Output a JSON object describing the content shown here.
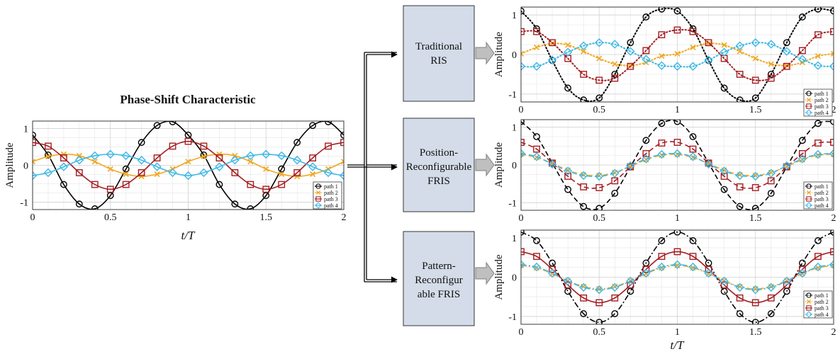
{
  "left_title": "Phase-Shift Characteristic",
  "blocks": [
    {
      "lines": [
        "Traditional",
        "RIS"
      ]
    },
    {
      "lines": [
        "Position-",
        "Reconfigurable",
        "FRIS"
      ]
    },
    {
      "lines": [
        "Pattern-",
        "Reconfigur",
        "able FRIS"
      ]
    }
  ],
  "colors": {
    "path1": "#000000",
    "path2": "#F0A820",
    "path3": "#A51E22",
    "path4": "#3DB8E6",
    "block_fill": "#D3DCE8",
    "arrow_fill": "#BFBFBF"
  },
  "chart_data": [
    {
      "id": "phase-shift",
      "type": "line",
      "title": "Phase-Shift Characteristic",
      "xlabel": "t/T",
      "ylabel": "Amplitude",
      "xlim": [
        0,
        2
      ],
      "ylim": [
        -1.2,
        1.2
      ],
      "xticks": [
        "0",
        "0.5",
        "1",
        "1.5",
        "2"
      ],
      "yticks": [
        "1",
        "0",
        "-1"
      ],
      "grid": true,
      "legend": "bottom-right",
      "series": [
        {
          "name": "path 1",
          "style": "solid",
          "marker": "circle",
          "x": [
            0,
            0.1,
            0.2,
            0.3,
            0.4,
            0.5,
            0.6,
            0.7,
            0.8,
            0.9,
            1.0,
            1.1,
            1.2,
            1.3,
            1.4,
            1.5,
            1.6,
            1.7,
            1.8,
            1.9,
            2.0
          ],
          "y": [
            0.82,
            0.28,
            -0.52,
            -1.05,
            -1.18,
            -0.82,
            -0.1,
            0.62,
            1.08,
            1.18,
            0.82,
            0.28,
            -0.52,
            -1.05,
            -1.18,
            -0.82,
            -0.1,
            0.62,
            1.08,
            1.18,
            0.82
          ]
        },
        {
          "name": "path 2",
          "style": "solid",
          "marker": "x",
          "x": [
            0,
            0.1,
            0.2,
            0.3,
            0.4,
            0.5,
            0.6,
            0.7,
            0.8,
            0.9,
            1.0,
            1.1,
            1.2,
            1.3,
            1.4,
            1.5,
            1.6,
            1.7,
            1.8,
            1.9,
            2.0
          ],
          "y": [
            0.1,
            0.24,
            0.3,
            0.26,
            0.1,
            -0.1,
            -0.24,
            -0.3,
            -0.24,
            -0.1,
            0.1,
            0.24,
            0.3,
            0.26,
            0.1,
            -0.1,
            -0.24,
            -0.3,
            -0.24,
            -0.1,
            0.1
          ]
        },
        {
          "name": "path 3",
          "style": "solid",
          "marker": "square",
          "x": [
            0,
            0.1,
            0.2,
            0.3,
            0.4,
            0.5,
            0.6,
            0.7,
            0.8,
            0.9,
            1.0,
            1.1,
            1.2,
            1.3,
            1.4,
            1.5,
            1.6,
            1.7,
            1.8,
            1.9,
            2.0
          ],
          "y": [
            0.62,
            0.52,
            0.2,
            -0.2,
            -0.52,
            -0.65,
            -0.52,
            -0.2,
            0.2,
            0.52,
            0.65,
            0.52,
            0.2,
            -0.2,
            -0.52,
            -0.65,
            -0.52,
            -0.2,
            0.2,
            0.52,
            0.62
          ]
        },
        {
          "name": "path 4",
          "style": "solid",
          "marker": "diamond",
          "x": [
            0,
            0.1,
            0.2,
            0.3,
            0.4,
            0.5,
            0.6,
            0.7,
            0.8,
            0.9,
            1.0,
            1.1,
            1.2,
            1.3,
            1.4,
            1.5,
            1.6,
            1.7,
            1.8,
            1.9,
            2.0
          ],
          "y": [
            -0.28,
            -0.2,
            -0.04,
            0.14,
            0.26,
            0.3,
            0.26,
            0.14,
            -0.04,
            -0.2,
            -0.28,
            -0.2,
            -0.04,
            0.14,
            0.26,
            0.3,
            0.26,
            0.14,
            -0.04,
            -0.2,
            -0.28
          ]
        }
      ]
    },
    {
      "id": "traditional-ris",
      "type": "line",
      "xlabel": "",
      "ylabel": "Amplitude",
      "xlim": [
        0,
        2
      ],
      "ylim": [
        -1.2,
        1.2
      ],
      "xticks": [
        "0",
        "0.5",
        "1",
        "1.5",
        "2"
      ],
      "yticks": [
        "1",
        "0",
        "-1"
      ],
      "grid": true,
      "legend": "bottom-right",
      "series": [
        {
          "name": "path 1",
          "style": "dotted",
          "marker": "circle",
          "x": [
            0,
            0.1,
            0.2,
            0.3,
            0.4,
            0.5,
            0.6,
            0.7,
            0.8,
            0.9,
            1.0,
            1.1,
            1.2,
            1.3,
            1.4,
            1.5,
            1.6,
            1.7,
            1.8,
            1.9,
            2.0
          ],
          "y": [
            1.1,
            0.65,
            -0.15,
            -0.85,
            -1.15,
            -1.1,
            -0.5,
            0.3,
            0.95,
            1.15,
            1.1,
            0.65,
            -0.15,
            -0.85,
            -1.15,
            -1.1,
            -0.5,
            0.3,
            0.95,
            1.15,
            1.1
          ]
        },
        {
          "name": "path 2",
          "style": "dotted",
          "marker": "x",
          "x": [
            0,
            0.1,
            0.2,
            0.3,
            0.4,
            0.5,
            0.6,
            0.7,
            0.8,
            0.9,
            1.0,
            1.1,
            1.2,
            1.3,
            1.4,
            1.5,
            1.6,
            1.7,
            1.8,
            1.9,
            2.0
          ],
          "y": [
            0.02,
            0.18,
            0.28,
            0.24,
            0.08,
            -0.1,
            -0.24,
            -0.28,
            -0.2,
            -0.04,
            0.02,
            0.18,
            0.28,
            0.24,
            0.08,
            -0.1,
            -0.24,
            -0.28,
            -0.2,
            -0.04,
            0.02
          ]
        },
        {
          "name": "path 3",
          "style": "dotted",
          "marker": "square",
          "x": [
            0,
            0.1,
            0.2,
            0.3,
            0.4,
            0.5,
            0.6,
            0.7,
            0.8,
            0.9,
            1.0,
            1.1,
            1.2,
            1.3,
            1.4,
            1.5,
            1.6,
            1.7,
            1.8,
            1.9,
            2.0
          ],
          "y": [
            0.58,
            0.58,
            0.3,
            -0.1,
            -0.5,
            -0.65,
            -0.6,
            -0.3,
            0.1,
            0.5,
            0.62,
            0.58,
            0.3,
            -0.1,
            -0.5,
            -0.65,
            -0.6,
            -0.3,
            0.1,
            0.5,
            0.58
          ]
        },
        {
          "name": "path 4",
          "style": "dotted",
          "marker": "diamond",
          "x": [
            0,
            0.1,
            0.2,
            0.3,
            0.4,
            0.5,
            0.6,
            0.7,
            0.8,
            0.9,
            1.0,
            1.1,
            1.2,
            1.3,
            1.4,
            1.5,
            1.6,
            1.7,
            1.8,
            1.9,
            2.0
          ],
          "y": [
            -0.3,
            -0.3,
            -0.14,
            0.06,
            0.22,
            0.3,
            0.26,
            0.08,
            -0.12,
            -0.28,
            -0.3,
            -0.3,
            -0.14,
            0.06,
            0.22,
            0.3,
            0.26,
            0.08,
            -0.12,
            -0.28,
            -0.3
          ]
        }
      ]
    },
    {
      "id": "position-fris",
      "type": "line",
      "xlabel": "",
      "ylabel": "Amplitude",
      "xlim": [
        0,
        2
      ],
      "ylim": [
        -1.2,
        1.2
      ],
      "xticks": [
        "0",
        "0.5",
        "1",
        "1.5",
        "2"
      ],
      "yticks": [
        "1",
        "0",
        "-1"
      ],
      "grid": true,
      "legend": "bottom-right",
      "series": [
        {
          "name": "path 1",
          "style": "dashed",
          "marker": "circle",
          "x": [
            0,
            0.1,
            0.2,
            0.3,
            0.4,
            0.5,
            0.6,
            0.7,
            0.8,
            0.9,
            1.0,
            1.1,
            1.2,
            1.3,
            1.4,
            1.5,
            1.6,
            1.7,
            1.8,
            1.9,
            2.0
          ],
          "y": [
            1.15,
            0.75,
            0.05,
            -0.65,
            -1.1,
            -1.15,
            -0.75,
            -0.05,
            0.65,
            1.1,
            1.15,
            0.75,
            0.05,
            -0.65,
            -1.1,
            -1.15,
            -0.75,
            -0.05,
            0.65,
            1.1,
            1.15
          ]
        },
        {
          "name": "path 2",
          "style": "dashed",
          "marker": "x",
          "x": [
            0,
            0.1,
            0.2,
            0.3,
            0.4,
            0.5,
            0.6,
            0.7,
            0.8,
            0.9,
            1.0,
            1.1,
            1.2,
            1.3,
            1.4,
            1.5,
            1.6,
            1.7,
            1.8,
            1.9,
            2.0
          ],
          "y": [
            0.28,
            0.2,
            0.04,
            -0.14,
            -0.26,
            -0.28,
            -0.2,
            -0.04,
            0.14,
            0.26,
            0.28,
            0.2,
            0.04,
            -0.14,
            -0.26,
            -0.28,
            -0.2,
            -0.04,
            0.14,
            0.26,
            0.28
          ]
        },
        {
          "name": "path 3",
          "style": "dashed",
          "marker": "square",
          "x": [
            0,
            0.1,
            0.2,
            0.3,
            0.4,
            0.5,
            0.6,
            0.7,
            0.8,
            0.9,
            1.0,
            1.1,
            1.2,
            1.3,
            1.4,
            1.5,
            1.6,
            1.7,
            1.8,
            1.9,
            2.0
          ],
          "y": [
            0.6,
            0.42,
            0.05,
            -0.3,
            -0.58,
            -0.6,
            -0.42,
            -0.05,
            0.3,
            0.58,
            0.6,
            0.42,
            0.05,
            -0.3,
            -0.58,
            -0.6,
            -0.42,
            -0.05,
            0.3,
            0.58,
            0.6
          ]
        },
        {
          "name": "path 4",
          "style": "dashed",
          "marker": "diamond",
          "x": [
            0,
            0.1,
            0.2,
            0.3,
            0.4,
            0.5,
            0.6,
            0.7,
            0.8,
            0.9,
            1.0,
            1.1,
            1.2,
            1.3,
            1.4,
            1.5,
            1.6,
            1.7,
            1.8,
            1.9,
            2.0
          ],
          "y": [
            0.3,
            0.22,
            0.02,
            -0.16,
            -0.28,
            -0.3,
            -0.22,
            -0.02,
            0.16,
            0.28,
            0.3,
            0.22,
            0.02,
            -0.16,
            -0.28,
            -0.3,
            -0.22,
            -0.02,
            0.16,
            0.28,
            0.3
          ]
        }
      ]
    },
    {
      "id": "pattern-fris",
      "type": "line",
      "xlabel": "t/T",
      "ylabel": "Amplitude",
      "xlim": [
        0,
        2
      ],
      "ylim": [
        -1.2,
        1.2
      ],
      "xticks": [
        "0",
        "0.5",
        "1",
        "1.5",
        "2"
      ],
      "yticks": [
        "1",
        "0",
        "-1"
      ],
      "grid": true,
      "legend": "bottom-right",
      "series": [
        {
          "name": "path 1",
          "style": "dashdot",
          "marker": "circle",
          "x": [
            0,
            0.1,
            0.2,
            0.3,
            0.4,
            0.5,
            0.6,
            0.7,
            0.8,
            0.9,
            1.0,
            1.1,
            1.2,
            1.3,
            1.4,
            1.5,
            1.6,
            1.7,
            1.8,
            1.9,
            2.0
          ],
          "y": [
            1.15,
            0.93,
            0.36,
            -0.36,
            -0.93,
            -1.15,
            -0.93,
            -0.36,
            0.36,
            0.93,
            1.15,
            0.93,
            0.36,
            -0.36,
            -0.93,
            -1.15,
            -0.93,
            -0.36,
            0.36,
            0.93,
            1.15
          ]
        },
        {
          "name": "path 2",
          "style": "dashdot",
          "marker": "x",
          "x": [
            0,
            0.1,
            0.2,
            0.3,
            0.4,
            0.5,
            0.6,
            0.7,
            0.8,
            0.9,
            1.0,
            1.1,
            1.2,
            1.3,
            1.4,
            1.5,
            1.6,
            1.7,
            1.8,
            1.9,
            2.0
          ],
          "y": [
            0.3,
            0.24,
            0.09,
            -0.09,
            -0.24,
            -0.3,
            -0.24,
            -0.09,
            0.09,
            0.24,
            0.3,
            0.24,
            0.09,
            -0.09,
            -0.24,
            -0.3,
            -0.24,
            -0.09,
            0.09,
            0.24,
            0.3
          ]
        },
        {
          "name": "path 3",
          "style": "solid",
          "marker": "square",
          "x": [
            0,
            0.1,
            0.2,
            0.3,
            0.4,
            0.5,
            0.6,
            0.7,
            0.8,
            0.9,
            1.0,
            1.1,
            1.2,
            1.3,
            1.4,
            1.5,
            1.6,
            1.7,
            1.8,
            1.9,
            2.0
          ],
          "y": [
            0.65,
            0.53,
            0.2,
            -0.2,
            -0.53,
            -0.65,
            -0.53,
            -0.2,
            0.2,
            0.53,
            0.65,
            0.53,
            0.2,
            -0.2,
            -0.53,
            -0.65,
            -0.53,
            -0.2,
            0.2,
            0.53,
            0.65
          ]
        },
        {
          "name": "path 4",
          "style": "dashdot",
          "marker": "diamond",
          "x": [
            0,
            0.1,
            0.2,
            0.3,
            0.4,
            0.5,
            0.6,
            0.7,
            0.8,
            0.9,
            1.0,
            1.1,
            1.2,
            1.3,
            1.4,
            1.5,
            1.6,
            1.7,
            1.8,
            1.9,
            2.0
          ],
          "y": [
            0.32,
            0.26,
            0.1,
            -0.1,
            -0.26,
            -0.32,
            -0.26,
            -0.1,
            0.1,
            0.26,
            0.32,
            0.26,
            0.1,
            -0.1,
            -0.26,
            -0.32,
            -0.26,
            -0.1,
            0.1,
            0.26,
            0.32
          ]
        }
      ]
    }
  ]
}
